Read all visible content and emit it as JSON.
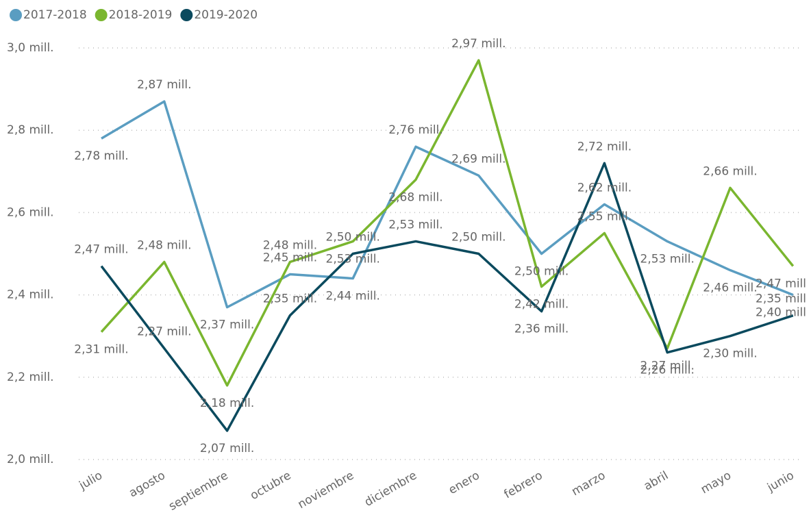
{
  "chart_data": {
    "type": "line",
    "categories": [
      "julio",
      "agosto",
      "septiembre",
      "octubre",
      "noviembre",
      "diciembre",
      "enero",
      "febrero",
      "marzo",
      "abril",
      "mayo",
      "junio"
    ],
    "series": [
      {
        "name": "2017-2018",
        "color": "#5a9dc1",
        "values": [
          2.78,
          2.87,
          2.37,
          2.45,
          2.44,
          2.76,
          2.69,
          2.5,
          2.62,
          2.53,
          2.46,
          2.4
        ],
        "value_labels": [
          "2,78 mill.",
          "2,87 mill.",
          "2,37 mill.",
          "2,45 mill.",
          "2,44 mill.",
          "2,76 mill.",
          "2,69 mill.",
          "2,50 mill.",
          "2,62 mill.",
          "2,53 mill.",
          "2,46 mill.",
          "2,40 mill"
        ]
      },
      {
        "name": "2018-2019",
        "color": "#7ab62f",
        "values": [
          2.31,
          2.48,
          2.18,
          2.48,
          2.53,
          2.68,
          2.97,
          2.42,
          2.55,
          2.27,
          2.66,
          2.47
        ],
        "value_labels": [
          "2,31 mill.",
          "2,48 mill.",
          "2,18 mill.",
          "2,48 mill.",
          "2,53 mill.",
          "2,68 mill.",
          "2,97 mill.",
          "2,42 mill.",
          "2,55 mill.",
          "2,27 mill.",
          "2,66 mill.",
          "2,47 mill"
        ]
      },
      {
        "name": "2019-2020",
        "color": "#0b4a5e",
        "values": [
          2.47,
          2.27,
          2.07,
          2.35,
          2.5,
          2.53,
          2.5,
          2.36,
          2.72,
          2.26,
          2.3,
          2.35
        ],
        "value_labels": [
          "2,47 mill.",
          "2,27 mill.",
          "2,07 mill.",
          "2,35 mill.",
          "2,50 mill.",
          "2,53 mill.",
          "2,50 mill.",
          "2,36 mill.",
          "2,72 mill.",
          "2,26 mill.",
          "2,30 mill.",
          "2,35 mill"
        ]
      }
    ],
    "ylim": [
      2.0,
      3.0
    ],
    "yticks": [
      {
        "value": 2.0,
        "label": "2,0 mill."
      },
      {
        "value": 2.2,
        "label": "2,2 mill."
      },
      {
        "value": 2.4,
        "label": "2,4 mill."
      },
      {
        "value": 2.6,
        "label": "2,6 mill."
      },
      {
        "value": 2.8,
        "label": "2,8 mill."
      },
      {
        "value": 3.0,
        "label": "3,0 mill."
      }
    ],
    "grid": true,
    "legend": "top-left"
  }
}
